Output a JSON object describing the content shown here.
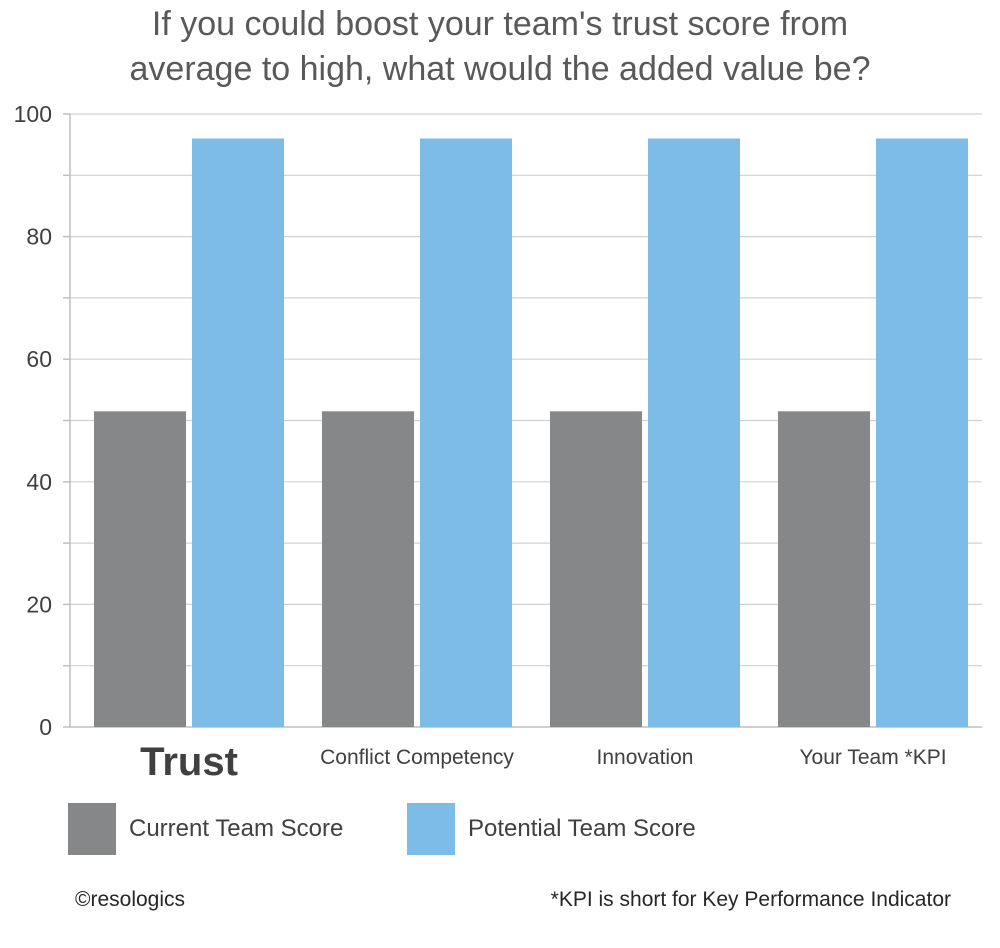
{
  "chart_data": {
    "type": "bar",
    "title": "If you could boost your team's trust score from average to high, what would the added value be?",
    "categories": [
      "Trust",
      "Conflict Competency",
      "Innovation",
      "Your Team *KPI"
    ],
    "series": [
      {
        "name": "Current Team Score",
        "values": [
          51.5,
          51.5,
          51.5,
          51.5
        ],
        "color": "#868789"
      },
      {
        "name": "Potential Team Score",
        "values": [
          96,
          96,
          96,
          96
        ],
        "color": "#7cbce6"
      }
    ],
    "ylim": [
      0,
      100
    ],
    "yticks": [
      0,
      20,
      40,
      60,
      80,
      100
    ],
    "grid": true,
    "legend": "bottom",
    "highlighted_category": "Trust"
  },
  "footer": {
    "credit": "©resologics",
    "note": "*KPI is short for Key Performance Indicator"
  }
}
